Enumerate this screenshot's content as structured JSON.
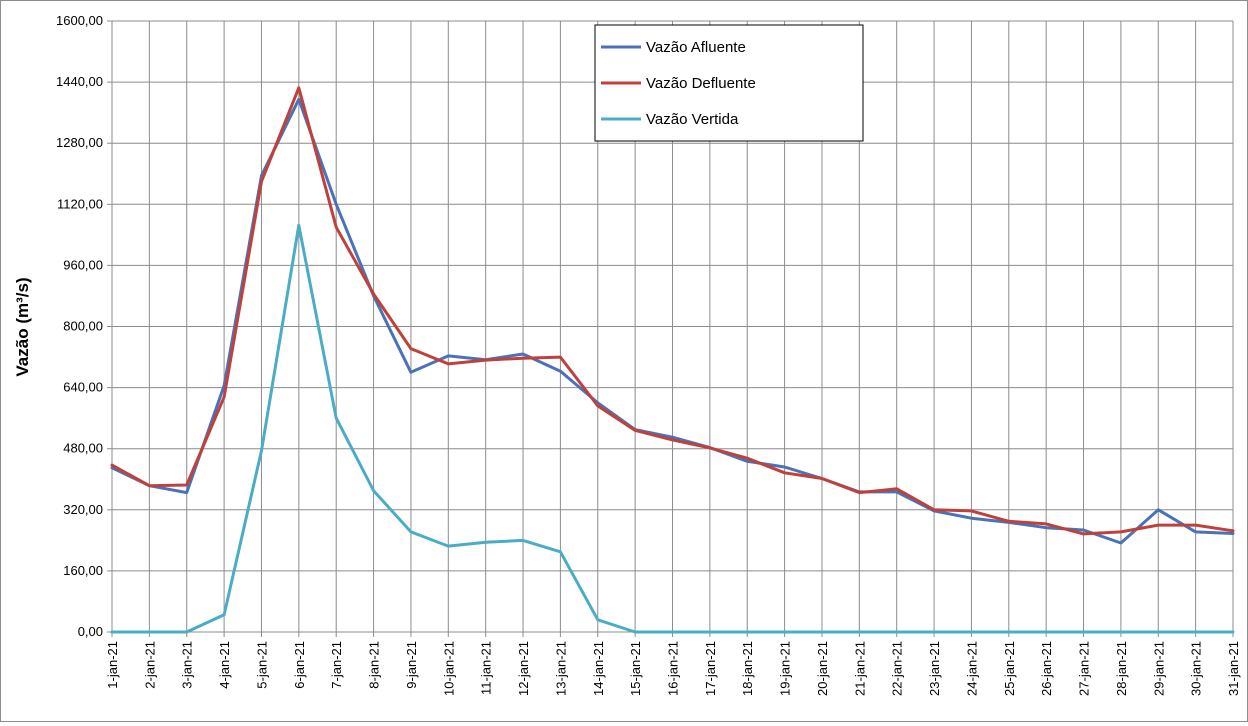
{
  "chart_data": {
    "type": "line",
    "title": "",
    "ylabel": "Vazão (m³/s)",
    "xlabel": "",
    "ylim": [
      0,
      1600
    ],
    "y_ticks": [
      "0,00",
      "160,00",
      "320,00",
      "480,00",
      "640,00",
      "800,00",
      "960,00",
      "1120,00",
      "1280,00",
      "1440,00",
      "1600,00"
    ],
    "categories": [
      "1-jan-21",
      "2-jan-21",
      "3-jan-21",
      "4-jan-21",
      "5-jan-21",
      "6-jan-21",
      "7-jan-21",
      "8-jan-21",
      "9-jan-21",
      "10-jan-21",
      "11-jan-21",
      "12-jan-21",
      "13-jan-21",
      "14-jan-21",
      "15-jan-21",
      "16-jan-21",
      "17-jan-21",
      "18-jan-21",
      "19-jan-21",
      "20-jan-21",
      "21-jan-21",
      "22-jan-21",
      "23-jan-21",
      "24-jan-21",
      "25-jan-21",
      "26-jan-21",
      "27-jan-21",
      "28-jan-21",
      "29-jan-21",
      "30-jan-21",
      "31-jan-21"
    ],
    "grid": true,
    "legend_position": "top-center",
    "series": [
      {
        "name": "Vazão Afluente",
        "color": "#4a72b8",
        "values": [
          430,
          383,
          365,
          645,
          1195,
          1395,
          1120,
          880,
          680,
          723,
          713,
          728,
          683,
          600,
          530,
          510,
          483,
          447,
          432,
          402,
          367,
          367,
          317,
          298,
          287,
          273,
          267,
          233,
          320,
          262,
          258
        ]
      },
      {
        "name": "Vazão Defluente",
        "color": "#c0413b",
        "values": [
          437,
          383,
          385,
          615,
          1180,
          1425,
          1060,
          885,
          742,
          702,
          712,
          717,
          720,
          592,
          528,
          503,
          482,
          455,
          417,
          402,
          365,
          375,
          320,
          317,
          290,
          283,
          257,
          262,
          280,
          280,
          265
        ]
      },
      {
        "name": "Vazão Vertida",
        "color": "#4bacc6",
        "values": [
          0,
          0,
          0,
          45,
          475,
          1065,
          560,
          370,
          262,
          225,
          235,
          240,
          210,
          32,
          0,
          0,
          0,
          0,
          0,
          0,
          0,
          0,
          0,
          0,
          0,
          0,
          0,
          0,
          0,
          0,
          0
        ]
      }
    ]
  }
}
